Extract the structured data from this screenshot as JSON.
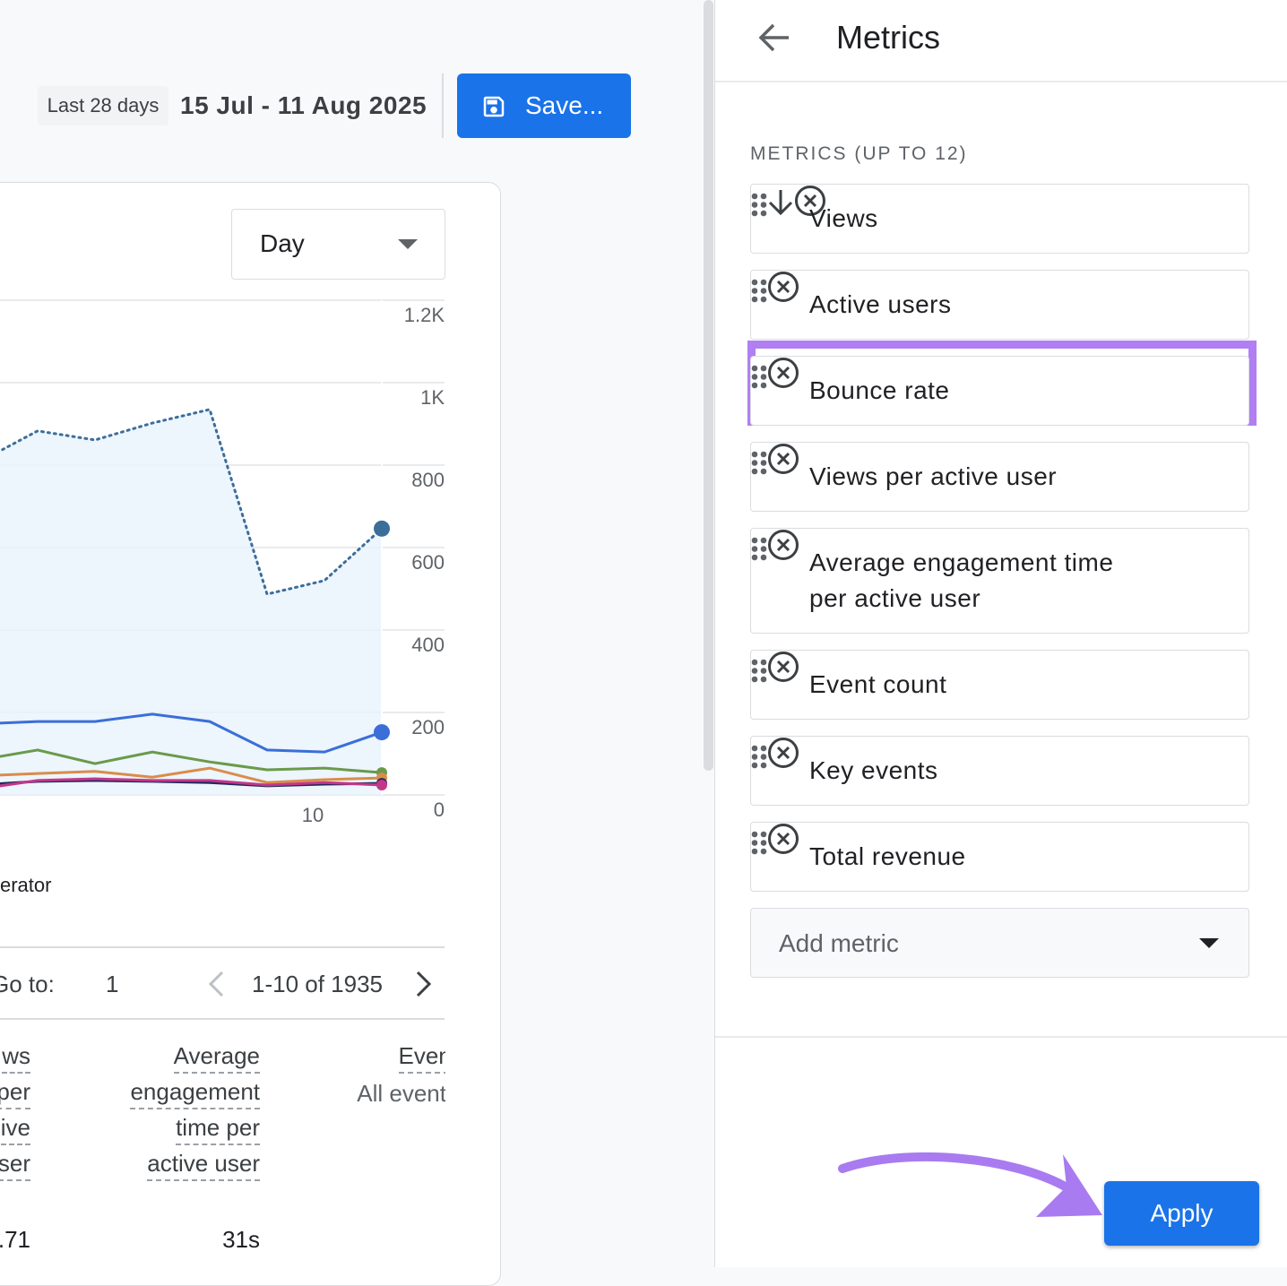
{
  "toolbar": {
    "date_preset": "Last 28 days",
    "date_range": "15 Jul - 11 Aug 2025",
    "save_button": "Save..."
  },
  "chart_card": {
    "granularity": "Day",
    "chart": {
      "type": "line",
      "categories": [
        null,
        null,
        null,
        null,
        null,
        null,
        "10",
        null
      ],
      "ylim": [
        0,
        1200
      ],
      "yticks": [
        0,
        200,
        400,
        600,
        800,
        {
          "value": 1000,
          "label": "1K"
        },
        {
          "value": 1200,
          "label": "1.2K"
        }
      ],
      "grid": true,
      "series": [
        {
          "color": "#3c6e9a",
          "style": "dotted",
          "area": true,
          "values": [
            809,
            883,
            861,
            902,
            935,
            487,
            520,
            646
          ]
        },
        {
          "color": "#3a6fd8",
          "style": "solid",
          "values": [
            172,
            178,
            178,
            196,
            178,
            109,
            104,
            152
          ]
        },
        {
          "color": "#6a9a4a",
          "style": "solid",
          "values": [
            85,
            109,
            76,
            104,
            80,
            61,
            65,
            54
          ]
        },
        {
          "color": "#d98c4a",
          "style": "solid",
          "values": [
            46,
            52,
            57,
            43,
            65,
            30,
            37,
            41
          ]
        },
        {
          "color": "#1f2a5c",
          "style": "solid",
          "values": [
            24,
            33,
            35,
            33,
            30,
            22,
            26,
            28
          ]
        },
        {
          "color": "#c2378a",
          "style": "solid",
          "values": [
            15,
            35,
            39,
            35,
            35,
            24,
            30,
            24
          ]
        }
      ]
    },
    "legend_fragment": "erator",
    "pagination": {
      "goto_label": "Go to:",
      "page": 1,
      "range": "1-10 of 1935"
    },
    "table": {
      "columns": [
        {
          "header": [
            "ws",
            "per",
            "ive",
            "ser"
          ],
          "value": ".71"
        },
        {
          "header": [
            "Average",
            "engagement",
            "time per",
            "active user"
          ],
          "value": "31s"
        },
        {
          "header": [
            "Event"
          ],
          "subheader": "All events"
        }
      ]
    }
  },
  "panel": {
    "title": "Metrics",
    "section_label": "METRICS (UP TO 12)",
    "metrics": [
      {
        "label": "Views",
        "sorted": true
      },
      {
        "label": "Active users"
      },
      {
        "label": "Bounce rate",
        "highlighted": true
      },
      {
        "label": "Views per active user"
      },
      {
        "label": "Average engagement time per active user"
      },
      {
        "label": "Event count"
      },
      {
        "label": "Key events"
      },
      {
        "label": "Total revenue"
      }
    ],
    "add_metric": "Add metric",
    "apply_button": "Apply"
  }
}
